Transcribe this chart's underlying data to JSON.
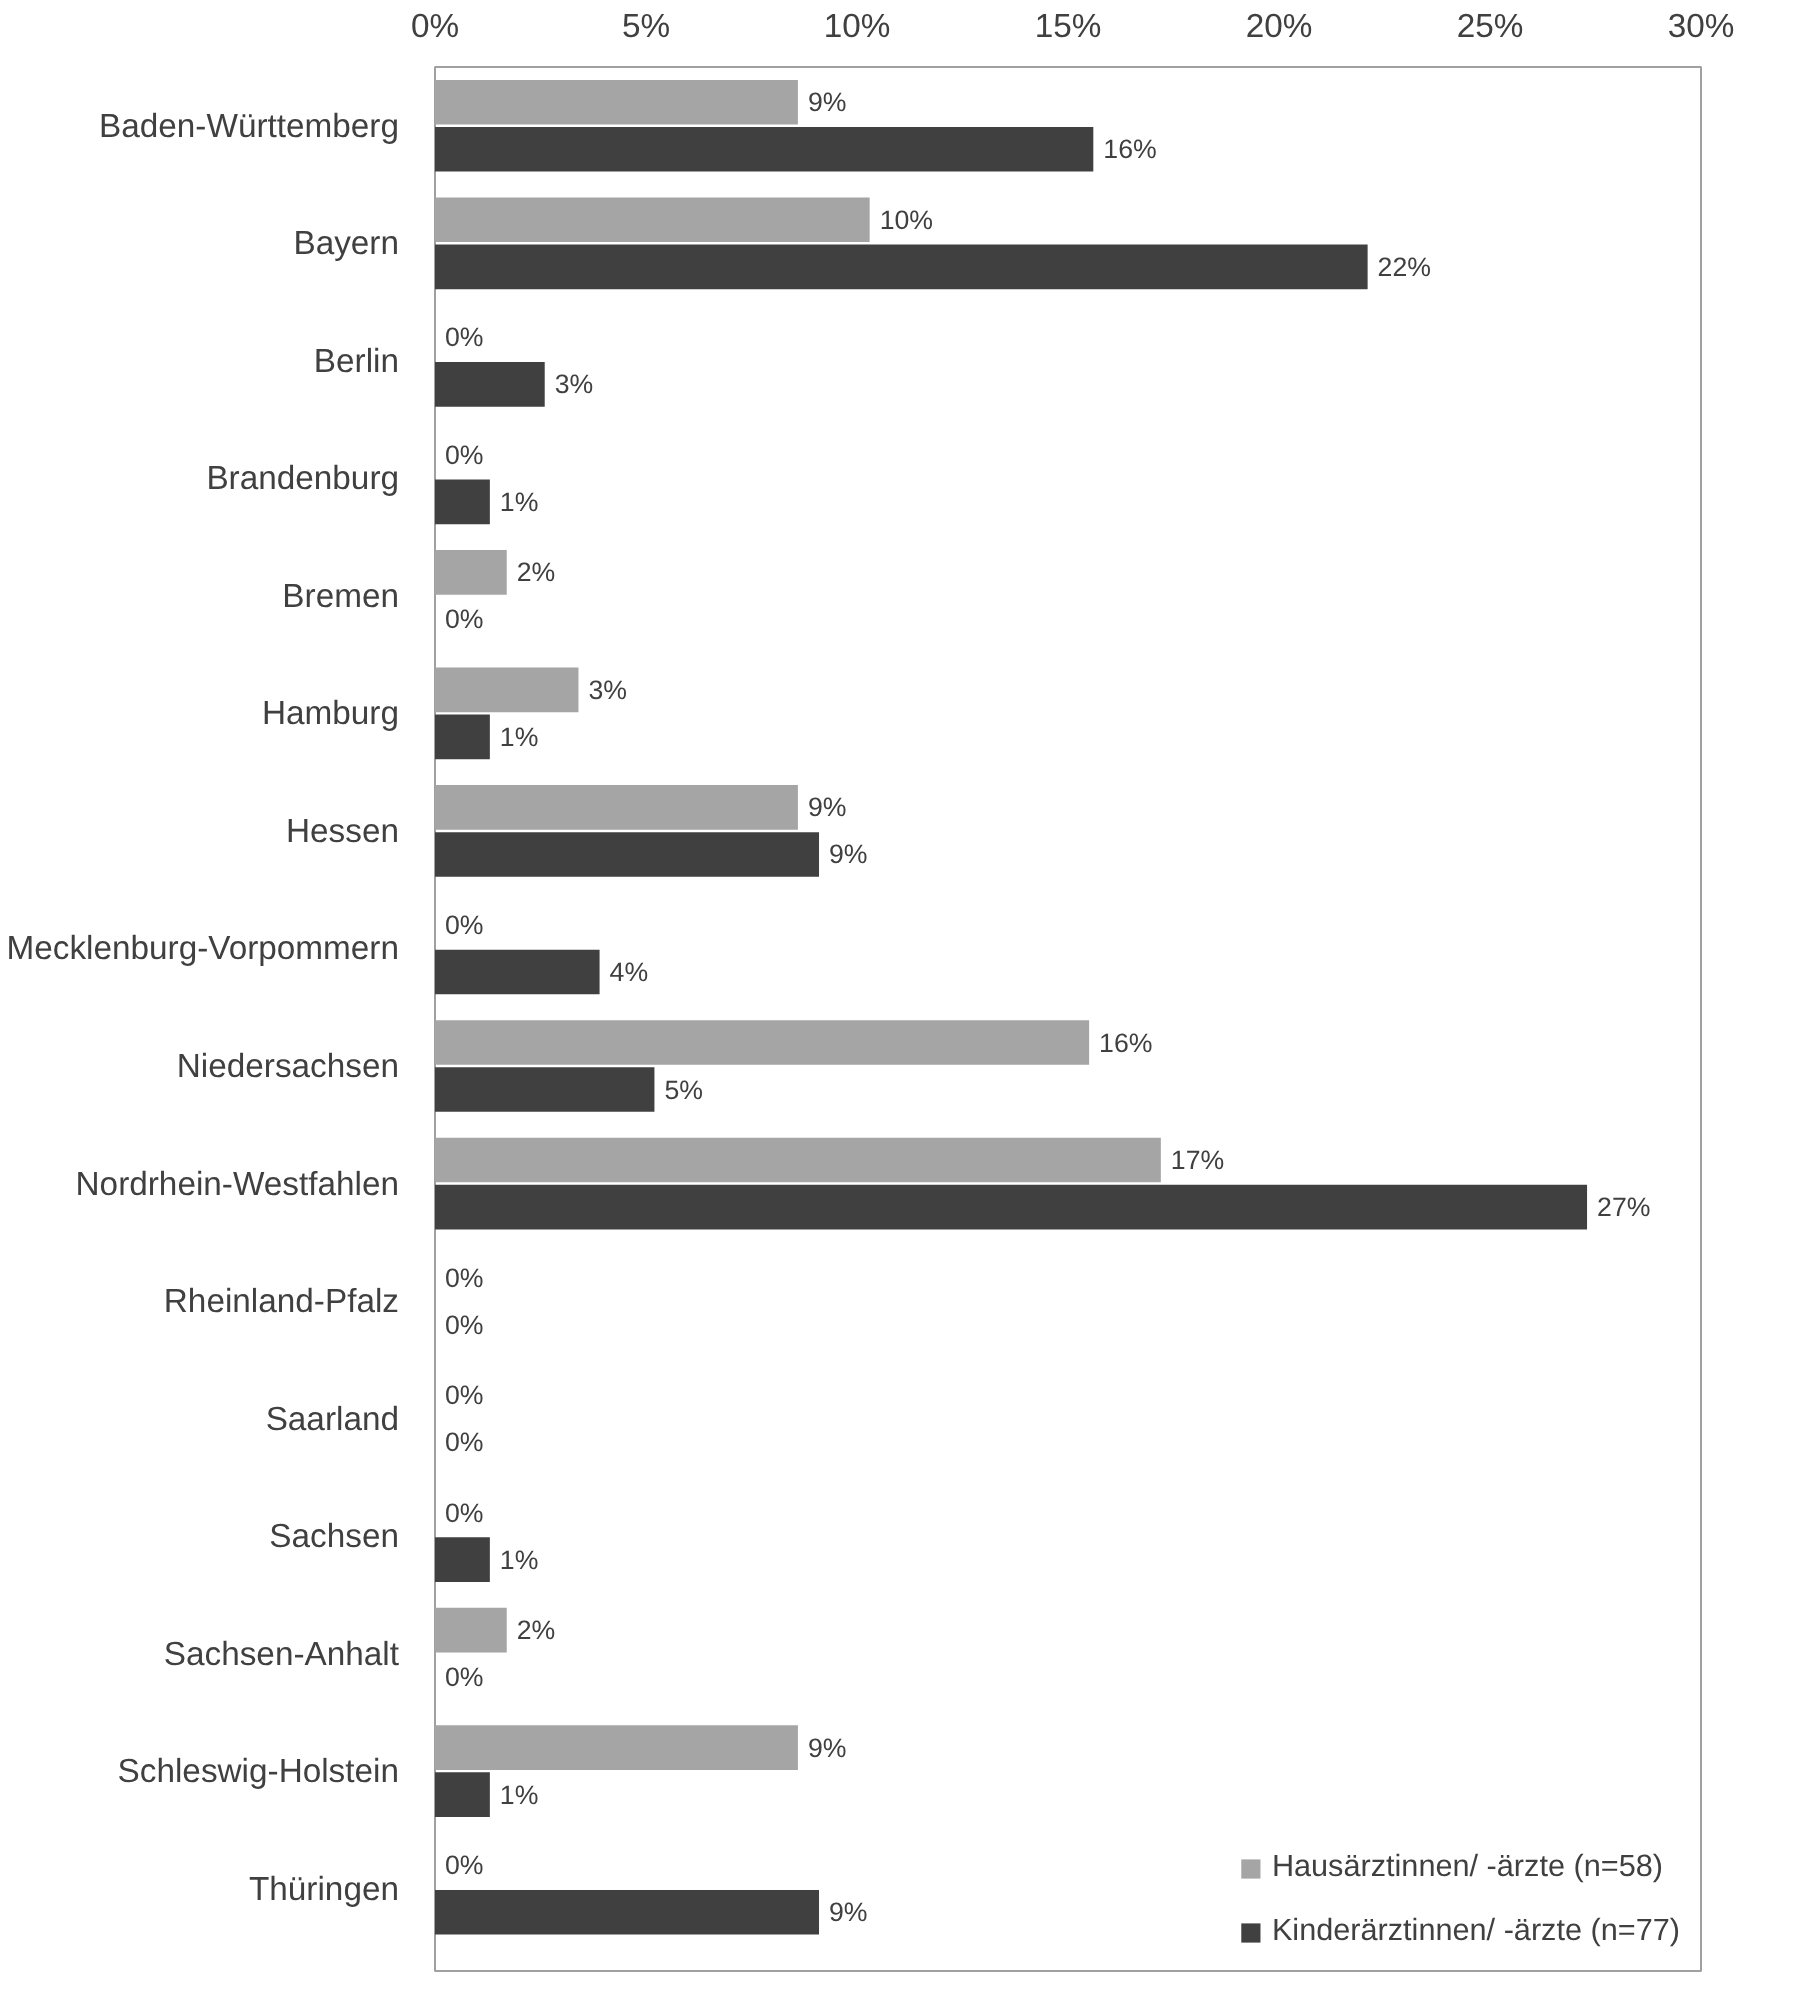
{
  "chart_data": {
    "type": "bar",
    "orientation": "horizontal",
    "categories": [
      "Baden-Württemberg",
      "Bayern",
      "Berlin",
      "Brandenburg",
      "Bremen",
      "Hamburg",
      "Hessen",
      "Mecklenburg-Vorpommern",
      "Niedersachsen",
      "Nordrhein-Westfahlen",
      "Rheinland-Pfalz",
      "Saarland",
      "Sachsen",
      "Sachsen-Anhalt",
      "Schleswig-Holstein",
      "Thüringen"
    ],
    "series": [
      {
        "name": "Hausärztinnen/ -ärzte (n=58)",
        "color": "#a5a5a5",
        "values": [
          8.6,
          10.3,
          0,
          0,
          1.7,
          3.4,
          8.6,
          0,
          15.5,
          17.2,
          0,
          0,
          0,
          1.7,
          8.6,
          0
        ],
        "value_labels": [
          "9%",
          "10%",
          "0%",
          "0%",
          "2%",
          "3%",
          "9%",
          "0%",
          "16%",
          "17%",
          "0%",
          "0%",
          "0%",
          "2%",
          "9%",
          "0%"
        ]
      },
      {
        "name": "Kinderärztinnen/ -ärzte (n=77)",
        "color": "#404040",
        "values": [
          15.6,
          22.1,
          2.6,
          1.3,
          0,
          1.3,
          9.1,
          3.9,
          5.2,
          27.3,
          0,
          0,
          1.3,
          0,
          1.3,
          9.1
        ],
        "value_labels": [
          "16%",
          "22%",
          "3%",
          "1%",
          "0%",
          "1%",
          "9%",
          "4%",
          "5%",
          "27%",
          "0%",
          "0%",
          "1%",
          "0%",
          "1%",
          "9%"
        ]
      }
    ],
    "xlim": [
      0,
      30
    ],
    "xticks": [
      {
        "value": 0,
        "label": "0%"
      },
      {
        "value": 5,
        "label": "5%"
      },
      {
        "value": 10,
        "label": "10%"
      },
      {
        "value": 15,
        "label": "15%"
      },
      {
        "value": 20,
        "label": "20%"
      },
      {
        "value": 25,
        "label": "25%"
      },
      {
        "value": 30,
        "label": "30%"
      }
    ],
    "grid": false,
    "legend": "bottom right"
  }
}
